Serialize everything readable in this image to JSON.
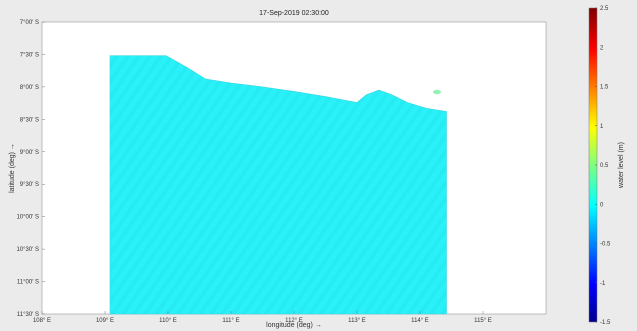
{
  "chart_data": {
    "type": "heatmap",
    "title": "17-Sep-2019 02:30:00",
    "xlabel": "longitude (deg) →",
    "ylabel": "latitude (deg) →",
    "xlim": [
      108.0,
      116.0
    ],
    "ylim": [
      -11.5,
      -7.0
    ],
    "xticks": [
      {
        "value": 108.0,
        "label": "108° E"
      },
      {
        "value": 109.0,
        "label": "109° E"
      },
      {
        "value": 110.0,
        "label": "110° E"
      },
      {
        "value": 111.0,
        "label": "111° E"
      },
      {
        "value": 112.0,
        "label": "112° E"
      },
      {
        "value": 113.0,
        "label": "113° E"
      },
      {
        "value": 114.0,
        "label": "114° E"
      },
      {
        "value": 115.0,
        "label": "115° E"
      }
    ],
    "yticks": [
      {
        "value": -7.0,
        "label": "7°00′ S"
      },
      {
        "value": -7.5,
        "label": "7°30′ S"
      },
      {
        "value": -8.0,
        "label": "8°00′ S"
      },
      {
        "value": -8.5,
        "label": "8°30′ S"
      },
      {
        "value": -9.0,
        "label": "9°00′ S"
      },
      {
        "value": -9.5,
        "label": "9°30′ S"
      },
      {
        "value": -10.0,
        "label": "10°00′ S"
      },
      {
        "value": -10.5,
        "label": "10°30′ S"
      },
      {
        "value": -11.0,
        "label": "11°00′ S"
      },
      {
        "value": -11.5,
        "label": "11°30′ S"
      }
    ],
    "domain_x": [
      109.08,
      114.42
    ],
    "domain_bottom_lat": -11.5,
    "domain_top_boundary": [
      {
        "lon": 109.08,
        "lat": -7.52
      },
      {
        "lon": 109.97,
        "lat": -7.52
      },
      {
        "lon": 110.3,
        "lat": -7.7
      },
      {
        "lon": 110.6,
        "lat": -7.88
      },
      {
        "lon": 111.0,
        "lat": -7.94
      },
      {
        "lon": 111.5,
        "lat": -8.0
      },
      {
        "lon": 112.0,
        "lat": -8.07
      },
      {
        "lon": 112.5,
        "lat": -8.15
      },
      {
        "lon": 113.0,
        "lat": -8.24
      },
      {
        "lon": 113.15,
        "lat": -8.12
      },
      {
        "lon": 113.35,
        "lat": -8.05
      },
      {
        "lon": 113.55,
        "lat": -8.12
      },
      {
        "lon": 113.8,
        "lat": -8.24
      },
      {
        "lon": 114.1,
        "lat": -8.33
      },
      {
        "lon": 114.42,
        "lat": -8.38
      }
    ],
    "field_value": 0.0,
    "field_color": "#29f0f8",
    "field_color_secondary": "#21e6ef",
    "colorbar": {
      "label": "water level (m)",
      "range": [
        -1.5,
        2.5
      ],
      "ticks": [
        -1.5,
        -1.0,
        -0.5,
        0.0,
        0.5,
        1.0,
        1.5,
        2.0,
        2.5
      ],
      "tick_labels": [
        "-1.5",
        "-1",
        "-0.5",
        "0",
        "0.5",
        "1",
        "1.5",
        "2",
        "2.5"
      ],
      "colormap": "jet"
    },
    "grid": false
  }
}
